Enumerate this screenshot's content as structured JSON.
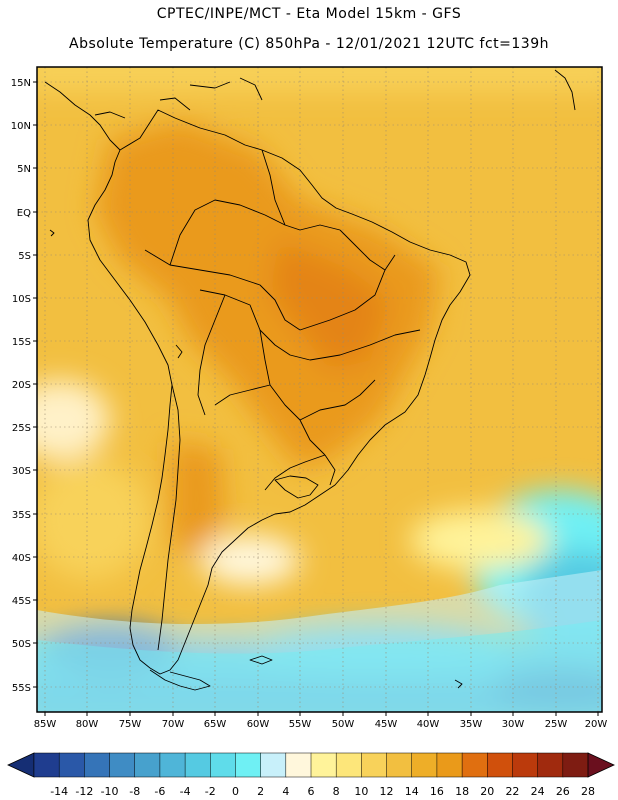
{
  "header": {
    "line1": "CPTEC/INPE/MCT -  Eta Model 15km - GFS",
    "line2": "Absolute Temperature (C) 850hPa - 12/01/2021 12UTC fct=139h"
  },
  "axes": {
    "lat_labels": [
      "15N",
      "10N",
      "5N",
      "EQ",
      "5S",
      "10S",
      "15S",
      "20S",
      "25S",
      "30S",
      "35S",
      "40S",
      "45S",
      "50S",
      "55S"
    ],
    "lon_labels": [
      "85W",
      "80W",
      "75W",
      "70W",
      "65W",
      "60W",
      "55W",
      "50W",
      "45W",
      "40W",
      "35W",
      "30W",
      "25W",
      "20W"
    ],
    "lat_values": [
      15,
      10,
      5,
      0,
      -5,
      -10,
      -15,
      -20,
      -25,
      -30,
      -35,
      -40,
      -45,
      -50,
      -55
    ],
    "lon_values": [
      -85,
      -80,
      -75,
      -70,
      -65,
      -60,
      -55,
      -50,
      -45,
      -40,
      -35,
      -30,
      -25,
      -20
    ]
  },
  "colorbar": {
    "labels": [
      "-14",
      "-12",
      "-10",
      "-8",
      "-6",
      "-4",
      "-2",
      "0",
      "2",
      "4",
      "6",
      "8",
      "10",
      "12",
      "14",
      "16",
      "18",
      "20",
      "22",
      "24",
      "26",
      "28"
    ],
    "colors": [
      "#1f3d8f",
      "#2a58a8",
      "#3574b8",
      "#3f8cc4",
      "#47a1cd",
      "#4fb5d8",
      "#55cae2",
      "#5fdcea",
      "#6ff0f4",
      "#c8f0fa",
      "#fff7dc",
      "#fff39a",
      "#fde67a",
      "#f8d25a",
      "#f2bf40",
      "#eeae28",
      "#ea9a1a",
      "#e06f10",
      "#d0500c",
      "#bb3a0c",
      "#a02a0e",
      "#7e1c12"
    ],
    "low_arrow_color": "#152e74",
    "high_arrow_color": "#6a0f1e"
  }
}
